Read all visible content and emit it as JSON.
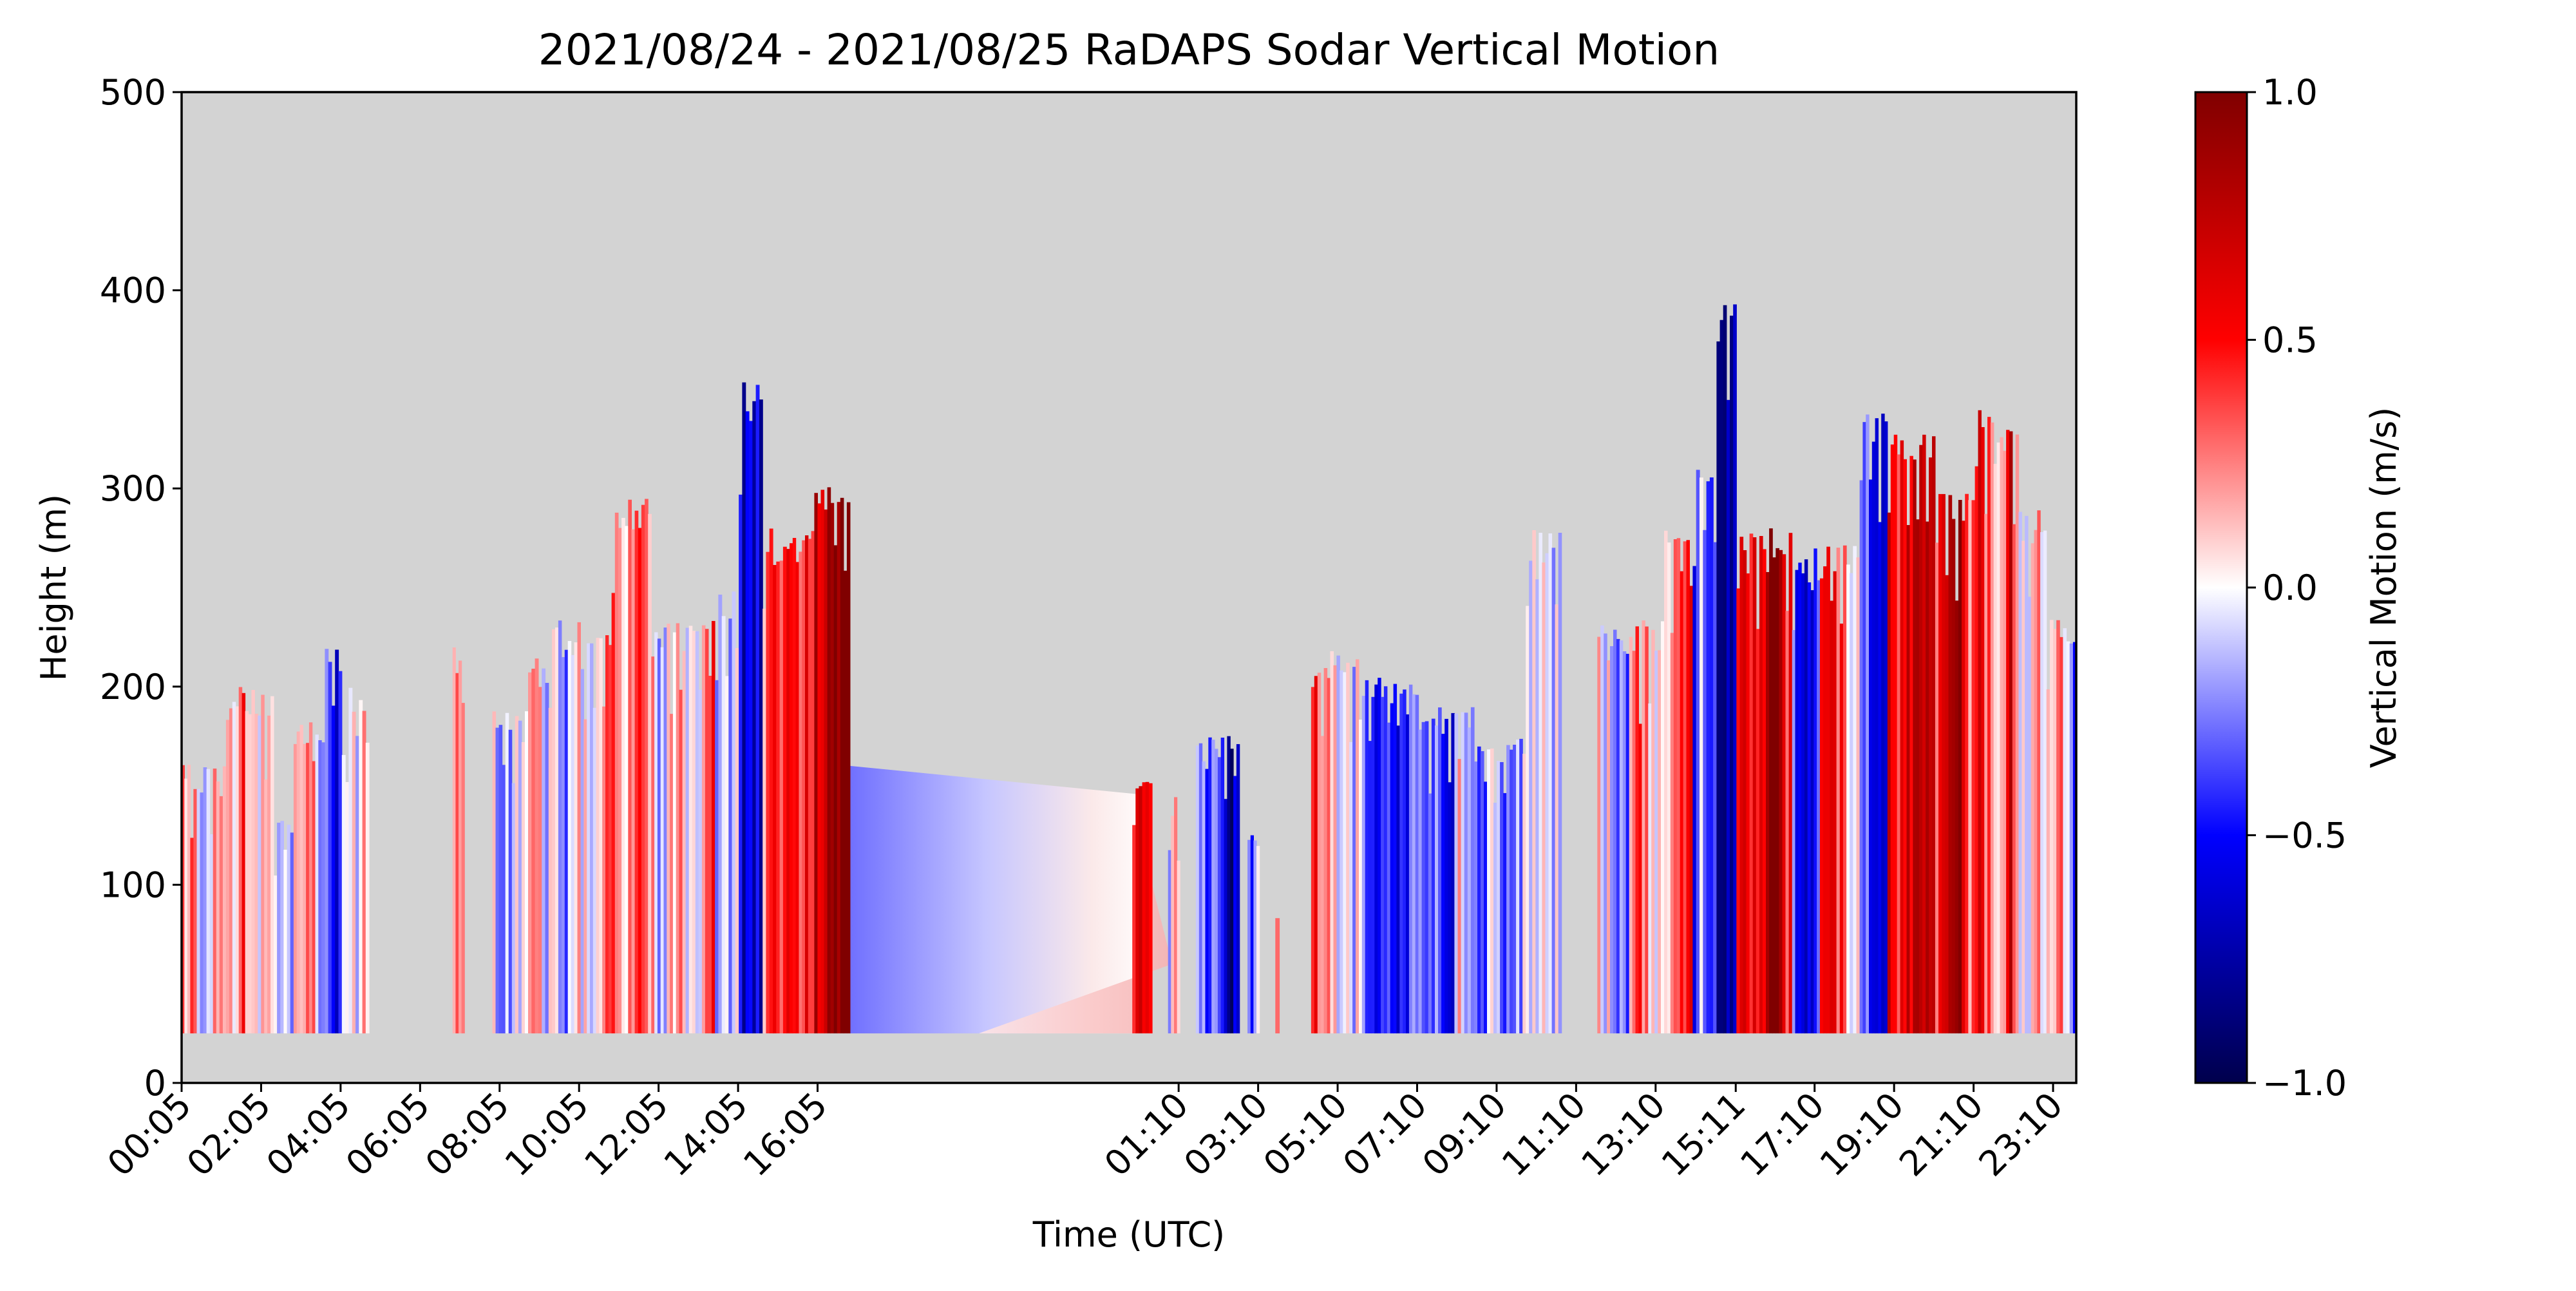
{
  "chart_data": {
    "type": "heatmap",
    "title": "2021/08/24 - 2021/08/25 RaDAPS Sodar Vertical Motion",
    "xlabel": "Time (UTC)",
    "ylabel": "Height (m)",
    "colorbar_label": "Vertical Motion (m/s)",
    "x_tick_labels": [
      "00:05",
      "02:05",
      "04:05",
      "06:05",
      "08:05",
      "10:05",
      "12:05",
      "14:05",
      "16:05",
      "01:10",
      "03:10",
      "05:10",
      "07:10",
      "09:10",
      "11:10",
      "13:10",
      "15:11",
      "17:10",
      "19:10",
      "21:10",
      "23:10"
    ],
    "x_tick_hours": [
      0.083,
      2.083,
      4.083,
      6.083,
      8.083,
      10.083,
      12.083,
      14.083,
      16.083,
      25.167,
      27.167,
      29.167,
      31.167,
      33.167,
      35.167,
      37.167,
      39.183,
      41.167,
      43.167,
      45.167,
      47.167
    ],
    "x_range_hours": [
      0.083,
      47.75
    ],
    "y_range": [
      0,
      500
    ],
    "y_ticks": [
      0,
      100,
      200,
      300,
      400,
      500
    ],
    "color_range": [
      -1.0,
      1.0
    ],
    "colorbar_ticks": [
      -1.0,
      -0.5,
      0.0,
      0.5,
      1.0
    ],
    "colorbar_tick_labels": [
      "−1.0",
      "−0.5",
      "0.0",
      "0.5",
      "1.0"
    ],
    "colormap": "seismic",
    "missing_color": "#d3d3d3",
    "data_floor_height_m": 25,
    "gap_interpolation": {
      "start_hour": 16.9,
      "end_hour": 24.5,
      "top_height_start_m": 160,
      "top_height_end_m": 145
    },
    "segments": [
      {
        "start": 0.08,
        "end": 0.3,
        "top": 165,
        "mean": 0.05
      },
      {
        "start": 0.3,
        "end": 1.2,
        "top": 160,
        "mean": 0.12
      },
      {
        "start": 1.2,
        "end": 2.4,
        "top": 200,
        "mean": 0.15
      },
      {
        "start": 2.4,
        "end": 2.9,
        "top": 135,
        "mean": 0.05
      },
      {
        "start": 2.9,
        "end": 3.6,
        "top": 185,
        "mean": -0.08
      },
      {
        "start": 3.6,
        "end": 4.2,
        "top": 220,
        "mean": -0.12
      },
      {
        "start": 4.2,
        "end": 4.8,
        "top": 200,
        "mean": -0.05
      },
      {
        "start": 6.9,
        "end": 7.2,
        "top": 220,
        "mean": -0.1
      },
      {
        "start": 7.9,
        "end": 8.8,
        "top": 190,
        "mean": -0.1
      },
      {
        "start": 8.8,
        "end": 9.4,
        "top": 215,
        "mean": -0.05
      },
      {
        "start": 9.4,
        "end": 10.2,
        "top": 235,
        "mean": -0.08
      },
      {
        "start": 10.2,
        "end": 10.9,
        "top": 235,
        "mean": 0.05
      },
      {
        "start": 10.9,
        "end": 11.9,
        "top": 295,
        "mean": 0.12
      },
      {
        "start": 11.9,
        "end": 12.6,
        "top": 235,
        "mean": 0.1
      },
      {
        "start": 12.6,
        "end": 13.5,
        "top": 235,
        "mean": 0.18
      },
      {
        "start": 13.5,
        "end": 14.1,
        "top": 250,
        "mean": -0.25
      },
      {
        "start": 14.1,
        "end": 14.7,
        "top": 355,
        "mean": -0.55
      },
      {
        "start": 14.7,
        "end": 15.3,
        "top": 280,
        "mean": 0.45
      },
      {
        "start": 15.3,
        "end": 16.0,
        "top": 280,
        "mean": 0.55
      },
      {
        "start": 16.0,
        "end": 16.9,
        "top": 310,
        "mean": 0.85
      },
      {
        "start": 24.0,
        "end": 24.5,
        "top": 160,
        "mean": 0.3
      },
      {
        "start": 24.9,
        "end": 25.2,
        "top": 145,
        "mean": 0.05
      },
      {
        "start": 25.6,
        "end": 26.7,
        "top": 175,
        "mean": -0.3
      },
      {
        "start": 26.9,
        "end": 27.2,
        "top": 130,
        "mean": -0.2
      },
      {
        "start": 27.6,
        "end": 27.7,
        "top": 90,
        "mean": 0.2
      },
      {
        "start": 28.5,
        "end": 29.7,
        "top": 220,
        "mean": 0.08
      },
      {
        "start": 29.7,
        "end": 31.2,
        "top": 205,
        "mean": -0.08
      },
      {
        "start": 31.2,
        "end": 32.6,
        "top": 190,
        "mean": 0.05
      },
      {
        "start": 32.6,
        "end": 33.9,
        "top": 175,
        "mean": -0.05
      },
      {
        "start": 33.9,
        "end": 34.8,
        "top": 280,
        "mean": 0.1
      },
      {
        "start": 35.7,
        "end": 36.5,
        "top": 235,
        "mean": -0.1
      },
      {
        "start": 36.5,
        "end": 37.3,
        "top": 235,
        "mean": 0.05
      },
      {
        "start": 37.3,
        "end": 38.1,
        "top": 280,
        "mean": 0.15
      },
      {
        "start": 38.1,
        "end": 38.7,
        "top": 320,
        "mean": -0.3
      },
      {
        "start": 38.7,
        "end": 39.2,
        "top": 400,
        "mean": -0.55
      },
      {
        "start": 39.2,
        "end": 40.6,
        "top": 280,
        "mean": 0.6
      },
      {
        "start": 40.6,
        "end": 41.3,
        "top": 270,
        "mean": -0.3
      },
      {
        "start": 41.3,
        "end": 42.3,
        "top": 275,
        "mean": 0.3
      },
      {
        "start": 42.3,
        "end": 43.0,
        "top": 340,
        "mean": -0.25
      },
      {
        "start": 43.0,
        "end": 44.2,
        "top": 330,
        "mean": 0.55
      },
      {
        "start": 44.2,
        "end": 45.2,
        "top": 300,
        "mean": 0.25
      },
      {
        "start": 45.2,
        "end": 46.3,
        "top": 340,
        "mean": 0.45
      },
      {
        "start": 46.3,
        "end": 47.0,
        "top": 290,
        "mean": 0.1
      },
      {
        "start": 47.0,
        "end": 47.75,
        "top": 235,
        "mean": -0.15
      }
    ]
  }
}
